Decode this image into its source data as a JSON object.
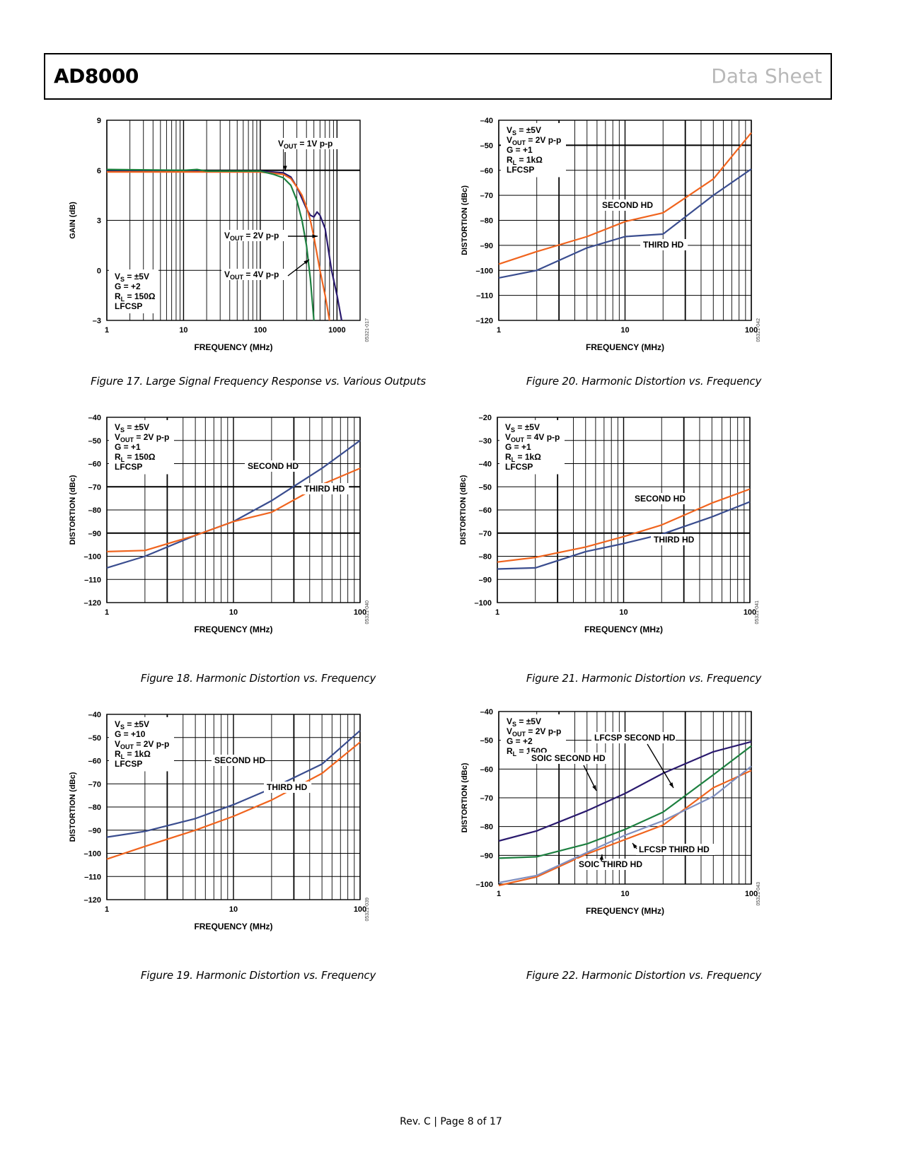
{
  "header": {
    "part_number": "AD8000",
    "doc_type": "Data Sheet"
  },
  "footer": {
    "page_info": "Rev. C | Page 8 of 17"
  },
  "chart_data": [
    {
      "id": "fig17",
      "type": "line",
      "caption": "Figure 17. Large Signal Frequency Response vs. Various Outputs",
      "xlabel": "FREQUENCY (MHz)",
      "ylabel": "GAIN (dB)",
      "xscale": "log",
      "xlim": [
        1,
        2000
      ],
      "ylim": [
        -3,
        9
      ],
      "xticks": [
        1,
        10,
        100,
        1000
      ],
      "yticks": [
        -3,
        0,
        3,
        6,
        9
      ],
      "code": "05321-017",
      "conditions": [
        "VS = ±5V",
        "G = +2",
        "RL = 150Ω",
        "LFCSP"
      ],
      "series": [
        {
          "name": "VOUT = 1V p-p",
          "color": "#2a1a6e",
          "points": [
            [
              1,
              5.95
            ],
            [
              10,
              5.95
            ],
            [
              100,
              5.95
            ],
            [
              200,
              5.85
            ],
            [
              250,
              5.6
            ],
            [
              300,
              5.0
            ],
            [
              350,
              4.3
            ],
            [
              400,
              3.7
            ],
            [
              450,
              3.3
            ],
            [
              500,
              3.2
            ],
            [
              550,
              3.5
            ],
            [
              600,
              3.3
            ],
            [
              700,
              2.5
            ],
            [
              850,
              0
            ],
            [
              1000,
              -1.5
            ],
            [
              1150,
              -3
            ]
          ]
        },
        {
          "name": "VOUT = 2V p-p",
          "color": "#f0641e",
          "points": [
            [
              1,
              5.9
            ],
            [
              10,
              5.9
            ],
            [
              100,
              5.9
            ],
            [
              200,
              5.75
            ],
            [
              250,
              5.5
            ],
            [
              300,
              5.0
            ],
            [
              350,
              4.5
            ],
            [
              400,
              3.8
            ],
            [
              450,
              3.0
            ],
            [
              500,
              2.0
            ],
            [
              600,
              0
            ],
            [
              700,
              -1.5
            ],
            [
              800,
              -3
            ]
          ]
        },
        {
          "name": "VOUT = 4V p-p",
          "color": "#1d8040",
          "points": [
            [
              1,
              6.05
            ],
            [
              10,
              6.0
            ],
            [
              15,
              6.05
            ],
            [
              20,
              5.95
            ],
            [
              50,
              5.95
            ],
            [
              100,
              5.95
            ],
            [
              150,
              5.75
            ],
            [
              200,
              5.55
            ],
            [
              250,
              5.1
            ],
            [
              300,
              4.2
            ],
            [
              350,
              3.0
            ],
            [
              400,
              1.5
            ],
            [
              450,
              -0.5
            ],
            [
              500,
              -3
            ]
          ]
        }
      ],
      "annotations": [
        "VOUT = 1V p-p",
        "VOUT = 2V p-p",
        "VOUT = 4V p-p"
      ]
    },
    {
      "id": "fig18",
      "type": "line",
      "caption": "Figure 18. Harmonic Distortion vs. Frequency",
      "xlabel": "FREQUENCY (MHz)",
      "ylabel": "DISTORTION (dBc)",
      "xscale": "log",
      "xlim": [
        1,
        100
      ],
      "ylim": [
        -120,
        -40
      ],
      "xticks": [
        1,
        10,
        100
      ],
      "yticks": [
        -120,
        -110,
        -100,
        -90,
        -80,
        -70,
        -60,
        -50,
        -40
      ],
      "code": "05321-040",
      "conditions": [
        "VS = ±5V",
        "VOUT = 2V p-p",
        "G = +1",
        "RL = 150Ω",
        "LFCSP"
      ],
      "series": [
        {
          "name": "SECOND HD",
          "color": "#3a4d8f",
          "points": [
            [
              1,
              -105
            ],
            [
              2,
              -100
            ],
            [
              5,
              -91
            ],
            [
              10,
              -85
            ],
            [
              20,
              -76
            ],
            [
              50,
              -62
            ],
            [
              100,
              -50
            ]
          ]
        },
        {
          "name": "THIRD HD",
          "color": "#f0641e",
          "points": [
            [
              1,
              -98
            ],
            [
              2,
              -97.5
            ],
            [
              5,
              -91
            ],
            [
              10,
              -85
            ],
            [
              20,
              -81
            ],
            [
              50,
              -69
            ],
            [
              100,
              -62
            ]
          ]
        }
      ],
      "annotations": [
        "SECOND HD",
        "THIRD HD"
      ]
    },
    {
      "id": "fig19",
      "type": "line",
      "caption": "Figure 19. Harmonic Distortion vs. Frequency",
      "xlabel": "FREQUENCY (MHz)",
      "ylabel": "DISTORTION (dBc)",
      "xscale": "log",
      "xlim": [
        1,
        100
      ],
      "ylim": [
        -120,
        -40
      ],
      "xticks": [
        1,
        10,
        100
      ],
      "yticks": [
        -120,
        -110,
        -100,
        -90,
        -80,
        -70,
        -60,
        -50,
        -40
      ],
      "code": "05321-039",
      "conditions": [
        "VS = ±5V",
        "G = +10",
        "VOUT = 2V p-p",
        "RL = 1kΩ",
        "LFCSP"
      ],
      "series": [
        {
          "name": "SECOND HD",
          "color": "#3a4d8f",
          "points": [
            [
              1,
              -93
            ],
            [
              2,
              -90.5
            ],
            [
              5,
              -85
            ],
            [
              10,
              -79
            ],
            [
              20,
              -72
            ],
            [
              50,
              -61.5
            ],
            [
              100,
              -47
            ]
          ]
        },
        {
          "name": "THIRD HD",
          "color": "#f0641e",
          "points": [
            [
              1,
              -102.5
            ],
            [
              2,
              -97
            ],
            [
              5,
              -90
            ],
            [
              10,
              -84
            ],
            [
              20,
              -77
            ],
            [
              50,
              -65.5
            ],
            [
              100,
              -52
            ]
          ]
        }
      ],
      "annotations": [
        "SECOND HD",
        "THIRD HD"
      ]
    },
    {
      "id": "fig20",
      "type": "line",
      "caption": "Figure 20. Harmonic Distortion vs. Frequency",
      "xlabel": "FREQUENCY (MHz)",
      "ylabel": "DISTORTION (dBc)",
      "xscale": "log",
      "xlim": [
        1,
        100
      ],
      "ylim": [
        -120,
        -40
      ],
      "xticks": [
        1,
        10,
        100
      ],
      "yticks": [
        -120,
        -110,
        -100,
        -90,
        -80,
        -70,
        -60,
        -50,
        -40
      ],
      "code": "05321-042",
      "conditions": [
        "VS = ±5V",
        "VOUT = 2V p-p",
        "G = +1",
        "RL = 1kΩ",
        "LFCSP"
      ],
      "series": [
        {
          "name": "SECOND HD",
          "color": "#f0641e",
          "points": [
            [
              1,
              -97.5
            ],
            [
              2,
              -92.5
            ],
            [
              5,
              -86.5
            ],
            [
              10,
              -80.5
            ],
            [
              20,
              -77
            ],
            [
              50,
              -63.5
            ],
            [
              100,
              -45
            ]
          ]
        },
        {
          "name": "THIRD HD",
          "color": "#3a4d8f",
          "points": [
            [
              1,
              -103
            ],
            [
              2,
              -100
            ],
            [
              5,
              -91
            ],
            [
              10,
              -86.5
            ],
            [
              20,
              -85.5
            ],
            [
              50,
              -70
            ],
            [
              100,
              -59.5
            ]
          ]
        }
      ],
      "annotations": [
        "SECOND HD",
        "THIRD HD"
      ]
    },
    {
      "id": "fig21",
      "type": "line",
      "caption": "Figure 21. Harmonic Distortion vs. Frequency",
      "xlabel": "FREQUENCY (MHz)",
      "ylabel": "DISTORTION (dBc)",
      "xscale": "log",
      "xlim": [
        1,
        100
      ],
      "ylim": [
        -100,
        -20
      ],
      "xticks": [
        1,
        10,
        100
      ],
      "yticks": [
        -100,
        -90,
        -80,
        -70,
        -60,
        -50,
        -40,
        -30,
        -20
      ],
      "code": "05321-041",
      "conditions": [
        "VS = ±5V",
        "VOUT = 4V p-p",
        "G = +1",
        "RL = 1kΩ",
        "LFCSP"
      ],
      "series": [
        {
          "name": "SECOND HD",
          "color": "#f0641e",
          "points": [
            [
              1,
              -82.5
            ],
            [
              2,
              -80.5
            ],
            [
              5,
              -76
            ],
            [
              10,
              -71.5
            ],
            [
              20,
              -66.5
            ],
            [
              50,
              -57
            ],
            [
              100,
              -51
            ]
          ]
        },
        {
          "name": "THIRD HD",
          "color": "#3a4d8f",
          "points": [
            [
              1,
              -85.5
            ],
            [
              2,
              -85
            ],
            [
              5,
              -78
            ],
            [
              10,
              -74.5
            ],
            [
              20,
              -70.5
            ],
            [
              50,
              -63
            ],
            [
              100,
              -56.5
            ]
          ]
        }
      ],
      "annotations": [
        "SECOND HD",
        "THIRD HD"
      ]
    },
    {
      "id": "fig22",
      "type": "line",
      "caption": "Figure 22. Harmonic Distortion vs. Frequency",
      "xlabel": "FREQUENCY (MHz)",
      "ylabel": "DISTORTION (dBc)",
      "xscale": "log",
      "xlim": [
        1,
        100
      ],
      "ylim": [
        -100,
        -40
      ],
      "xticks": [
        1,
        10,
        100
      ],
      "yticks": [
        -100,
        -90,
        -80,
        -70,
        -60,
        -50,
        -40
      ],
      "code": "05321-043",
      "conditions": [
        "VS = ±5V",
        "VOUT = 2V p-p",
        "G = +2",
        "RL = 150Ω"
      ],
      "series": [
        {
          "name": "SOIC SECOND HD",
          "color": "#2a1a6e",
          "points": [
            [
              1,
              -85
            ],
            [
              2,
              -81.5
            ],
            [
              5,
              -74.5
            ],
            [
              10,
              -68.5
            ],
            [
              20,
              -61.5
            ],
            [
              50,
              -54
            ],
            [
              100,
              -50.5
            ]
          ]
        },
        {
          "name": "LFCSP SECOND HD",
          "color": "#1d8040",
          "points": [
            [
              1,
              -91
            ],
            [
              2,
              -90.5
            ],
            [
              5,
              -86
            ],
            [
              10,
              -81
            ],
            [
              20,
              -75
            ],
            [
              50,
              -62
            ],
            [
              100,
              -52
            ]
          ]
        },
        {
          "name": "LFCSP THIRD HD",
          "color": "#f0641e",
          "points": [
            [
              1,
              -100.5
            ],
            [
              2,
              -97.5
            ],
            [
              5,
              -89.5
            ],
            [
              10,
              -84.5
            ],
            [
              20,
              -79.5
            ],
            [
              50,
              -66.5
            ],
            [
              100,
              -60.5
            ]
          ]
        },
        {
          "name": "SOIC THIRD HD",
          "color": "#8090c0",
          "points": [
            [
              1,
              -99.5
            ],
            [
              2,
              -97
            ],
            [
              5,
              -89
            ],
            [
              10,
              -83
            ],
            [
              20,
              -78
            ],
            [
              50,
              -69.5
            ],
            [
              100,
              -59
            ]
          ]
        }
      ],
      "annotations": [
        "LFCSP SECOND HD",
        "SOIC SECOND HD",
        "LFCSP THIRD HD",
        "SOIC THIRD HD"
      ]
    }
  ]
}
